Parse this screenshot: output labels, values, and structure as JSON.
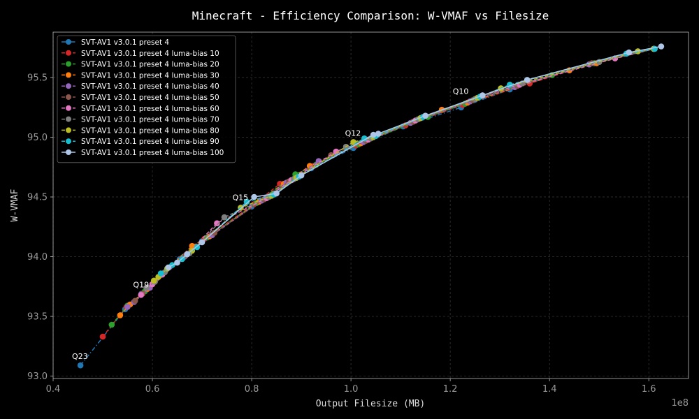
{
  "chart_data": {
    "type": "line",
    "title": "Minecraft - Efficiency Comparison: W-VMAF vs Filesize",
    "xlabel": "Output Filesize (MB)",
    "ylabel": "W-VMAF",
    "x_offset_label": "1e8",
    "xlim": [
      0.4,
      1.68
    ],
    "ylim": [
      92.98,
      95.88
    ],
    "x_ticks": [
      0.4,
      0.6,
      0.8,
      1.0,
      1.2,
      1.4,
      1.6
    ],
    "x_tick_labels": [
      "0.4",
      "0.6",
      "0.8",
      "1.0",
      "1.2",
      "1.4",
      "1.6"
    ],
    "y_ticks": [
      93.0,
      93.5,
      94.0,
      94.5,
      95.0,
      95.5
    ],
    "y_tick_labels": [
      "93.0",
      "93.5",
      "94.0",
      "94.5",
      "95.0",
      "95.5"
    ],
    "grid": true,
    "legend_position": "top-left",
    "annotations": [
      {
        "text": "Q23",
        "x": 0.455,
        "y": 93.09
      },
      {
        "text": "Q19",
        "x": 0.578,
        "y": 93.69
      },
      {
        "text": "Q15",
        "x": 0.778,
        "y": 94.42
      },
      {
        "text": "Q12",
        "x": 1.005,
        "y": 94.96
      },
      {
        "text": "Q10",
        "x": 1.222,
        "y": 95.31
      }
    ],
    "series": [
      {
        "name": "SVT-AV1 v3.0.1 preset 4",
        "color": "#1f77b4",
        "dash": "dashdot",
        "x": [
          0.455,
          0.545,
          0.578,
          0.655,
          0.7,
          0.8,
          0.86,
          0.92,
          1.005,
          1.105,
          1.222,
          1.32,
          1.48,
          1.61
        ],
        "y": [
          93.09,
          93.56,
          93.69,
          93.98,
          94.13,
          94.42,
          94.6,
          94.74,
          94.91,
          95.09,
          95.25,
          95.4,
          95.61,
          95.74
        ]
      },
      {
        "name": "SVT-AV1 v3.0.1 preset 4 luma-bias 10",
        "color": "#d62728",
        "dash": "dashed",
        "x": [
          0.5,
          0.548,
          0.58,
          0.66,
          0.705,
          0.805,
          0.857,
          0.925,
          1.01,
          1.11,
          1.225,
          1.36,
          1.49,
          1.61
        ],
        "y": [
          93.33,
          93.58,
          93.69,
          93.99,
          94.15,
          94.44,
          94.61,
          94.76,
          94.93,
          95.1,
          95.27,
          95.45,
          95.62,
          95.74
        ]
      },
      {
        "name": "SVT-AV1 v3.0.1 preset 4 luma-bias 20",
        "color": "#2ca02c",
        "dash": "dashed",
        "x": [
          0.518,
          0.55,
          0.585,
          0.663,
          0.71,
          0.81,
          0.888,
          0.93,
          1.015,
          1.155,
          1.23,
          1.405,
          1.49,
          1.61
        ],
        "y": [
          93.43,
          93.59,
          93.71,
          94.0,
          94.16,
          94.45,
          94.69,
          94.77,
          94.94,
          95.17,
          95.28,
          95.52,
          95.62,
          95.74
        ]
      },
      {
        "name": "SVT-AV1 v3.0.1 preset 4 luma-bias 30",
        "color": "#ff7f0e",
        "dash": "dashed",
        "x": [
          0.535,
          0.555,
          0.59,
          0.68,
          0.715,
          0.815,
          0.865,
          0.917,
          1.02,
          1.183,
          1.235,
          1.44,
          1.495,
          1.61
        ],
        "y": [
          93.51,
          93.6,
          93.73,
          94.09,
          94.17,
          94.46,
          94.61,
          94.76,
          94.95,
          95.23,
          95.29,
          95.56,
          95.62,
          95.74
        ]
      },
      {
        "name": "SVT-AV1 v3.0.1 preset 4 luma-bias 40",
        "color": "#9467bd",
        "dash": "dashed",
        "x": [
          0.55,
          0.563,
          0.595,
          0.665,
          0.72,
          0.82,
          0.87,
          0.935,
          1.025,
          1.12,
          1.24,
          1.33,
          1.48,
          1.61
        ],
        "y": [
          93.58,
          93.62,
          93.74,
          94.0,
          94.18,
          94.47,
          94.62,
          94.8,
          94.96,
          95.12,
          95.3,
          95.42,
          95.61,
          95.74
        ]
      },
      {
        "name": "SVT-AV1 v3.0.1 preset 4 luma-bias 50",
        "color": "#8c564b",
        "dash": "dashed",
        "x": [
          0.565,
          0.58,
          0.6,
          0.667,
          0.725,
          0.825,
          0.875,
          0.96,
          1.03,
          1.125,
          1.245,
          1.335,
          1.485,
          1.61
        ],
        "y": [
          93.63,
          93.69,
          93.77,
          94.01,
          94.2,
          94.48,
          94.63,
          94.85,
          94.97,
          95.13,
          95.31,
          95.43,
          95.62,
          95.74
        ]
      },
      {
        "name": "SVT-AV1 v3.0.1 preset 4 luma-bias 60",
        "color": "#e377c2",
        "dash": "dashed",
        "x": [
          0.577,
          0.6,
          0.62,
          0.67,
          0.73,
          0.83,
          0.88,
          0.97,
          1.035,
          1.13,
          1.265,
          1.34,
          1.532,
          1.61
        ],
        "y": [
          93.68,
          93.77,
          93.85,
          94.02,
          94.28,
          94.49,
          94.64,
          94.88,
          94.98,
          95.14,
          95.35,
          95.44,
          95.66,
          95.74
        ]
      },
      {
        "name": "SVT-AV1 v3.0.1 preset 4 luma-bias 70",
        "color": "#7f7f7f",
        "dash": "dashed",
        "x": [
          0.588,
          0.605,
          0.625,
          0.675,
          0.745,
          0.835,
          0.885,
          0.99,
          1.04,
          1.135,
          1.25,
          1.345,
          1.5,
          1.61
        ],
        "y": [
          93.74,
          93.79,
          93.87,
          94.03,
          94.33,
          94.5,
          94.65,
          94.92,
          94.99,
          95.15,
          95.32,
          95.45,
          95.63,
          95.74
        ]
      },
      {
        "name": "SVT-AV1 v3.0.1 preset 4 luma-bias 80",
        "color": "#bcbd22",
        "dash": "dashed",
        "x": [
          0.603,
          0.612,
          0.63,
          0.68,
          0.778,
          0.84,
          0.89,
          1.005,
          1.045,
          1.14,
          1.255,
          1.302,
          1.578,
          1.61
        ],
        "y": [
          93.8,
          93.83,
          93.9,
          94.05,
          94.41,
          94.51,
          94.66,
          94.96,
          95.0,
          95.16,
          95.33,
          95.41,
          95.72,
          95.74
        ]
      },
      {
        "name": "SVT-AV1 v3.0.1 preset 4 luma-bias 90",
        "color": "#17becf",
        "dash": "dashed",
        "x": [
          0.617,
          0.64,
          0.66,
          0.69,
          0.79,
          0.845,
          0.895,
          1.027,
          1.05,
          1.145,
          1.26,
          1.32,
          1.555,
          1.612
        ],
        "y": [
          93.86,
          93.93,
          93.98,
          94.08,
          94.46,
          94.52,
          94.67,
          94.99,
          95.01,
          95.17,
          95.34,
          95.44,
          95.7,
          95.74
        ]
      },
      {
        "name": "SVT-AV1 v3.0.1 preset 4 luma-bias 100",
        "color": "#aec7e8",
        "dash": "solid",
        "x": [
          0.632,
          0.65,
          0.67,
          0.7,
          0.805,
          0.85,
          0.9,
          1.045,
          1.055,
          1.15,
          1.265,
          1.355,
          1.56,
          1.625
        ],
        "y": [
          93.91,
          93.95,
          94.02,
          94.12,
          94.5,
          94.53,
          94.68,
          95.02,
          95.03,
          95.18,
          95.35,
          95.48,
          95.71,
          95.76
        ]
      }
    ]
  }
}
